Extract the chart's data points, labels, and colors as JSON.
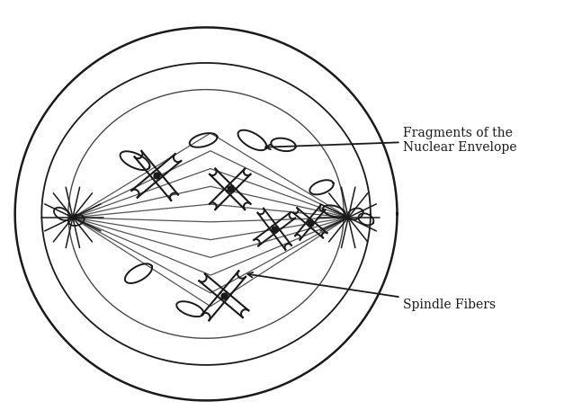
{
  "background_color": "#ffffff",
  "line_color": "#1a1a1a",
  "label1": "Fragments of the\nNuclear Envelope",
  "label2": "Spindle Fibers",
  "figsize": [
    6.37,
    4.66
  ],
  "dpi": 100
}
